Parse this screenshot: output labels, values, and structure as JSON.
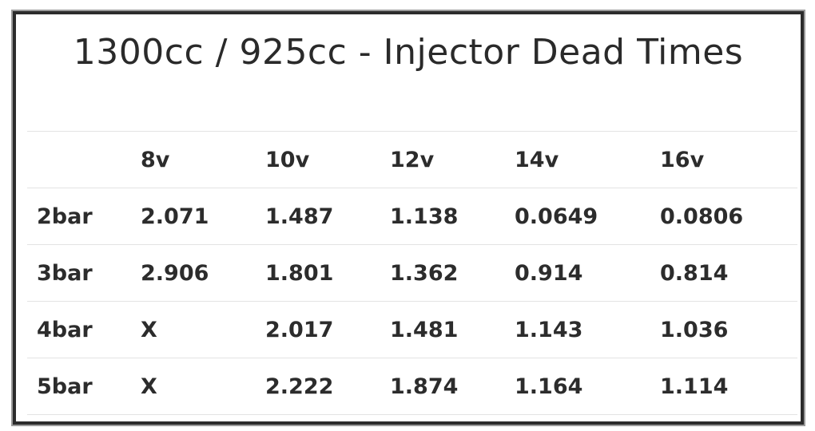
{
  "title": "1300cc / 925cc - Injector Dead Times",
  "table": {
    "headers": [
      "",
      "8v",
      "10v",
      "12v",
      "14v",
      "16v"
    ],
    "rows": [
      [
        "2bar",
        "2.071",
        "1.487",
        "1.138",
        "0.0649",
        "0.0806"
      ],
      [
        "3bar",
        "2.906",
        "1.801",
        "1.362",
        "0.914",
        "0.814"
      ],
      [
        "4bar",
        "X",
        "2.017",
        "1.481",
        "1.143",
        "1.036"
      ],
      [
        "5bar",
        "X",
        "2.222",
        "1.874",
        "1.164",
        "1.114"
      ]
    ]
  }
}
